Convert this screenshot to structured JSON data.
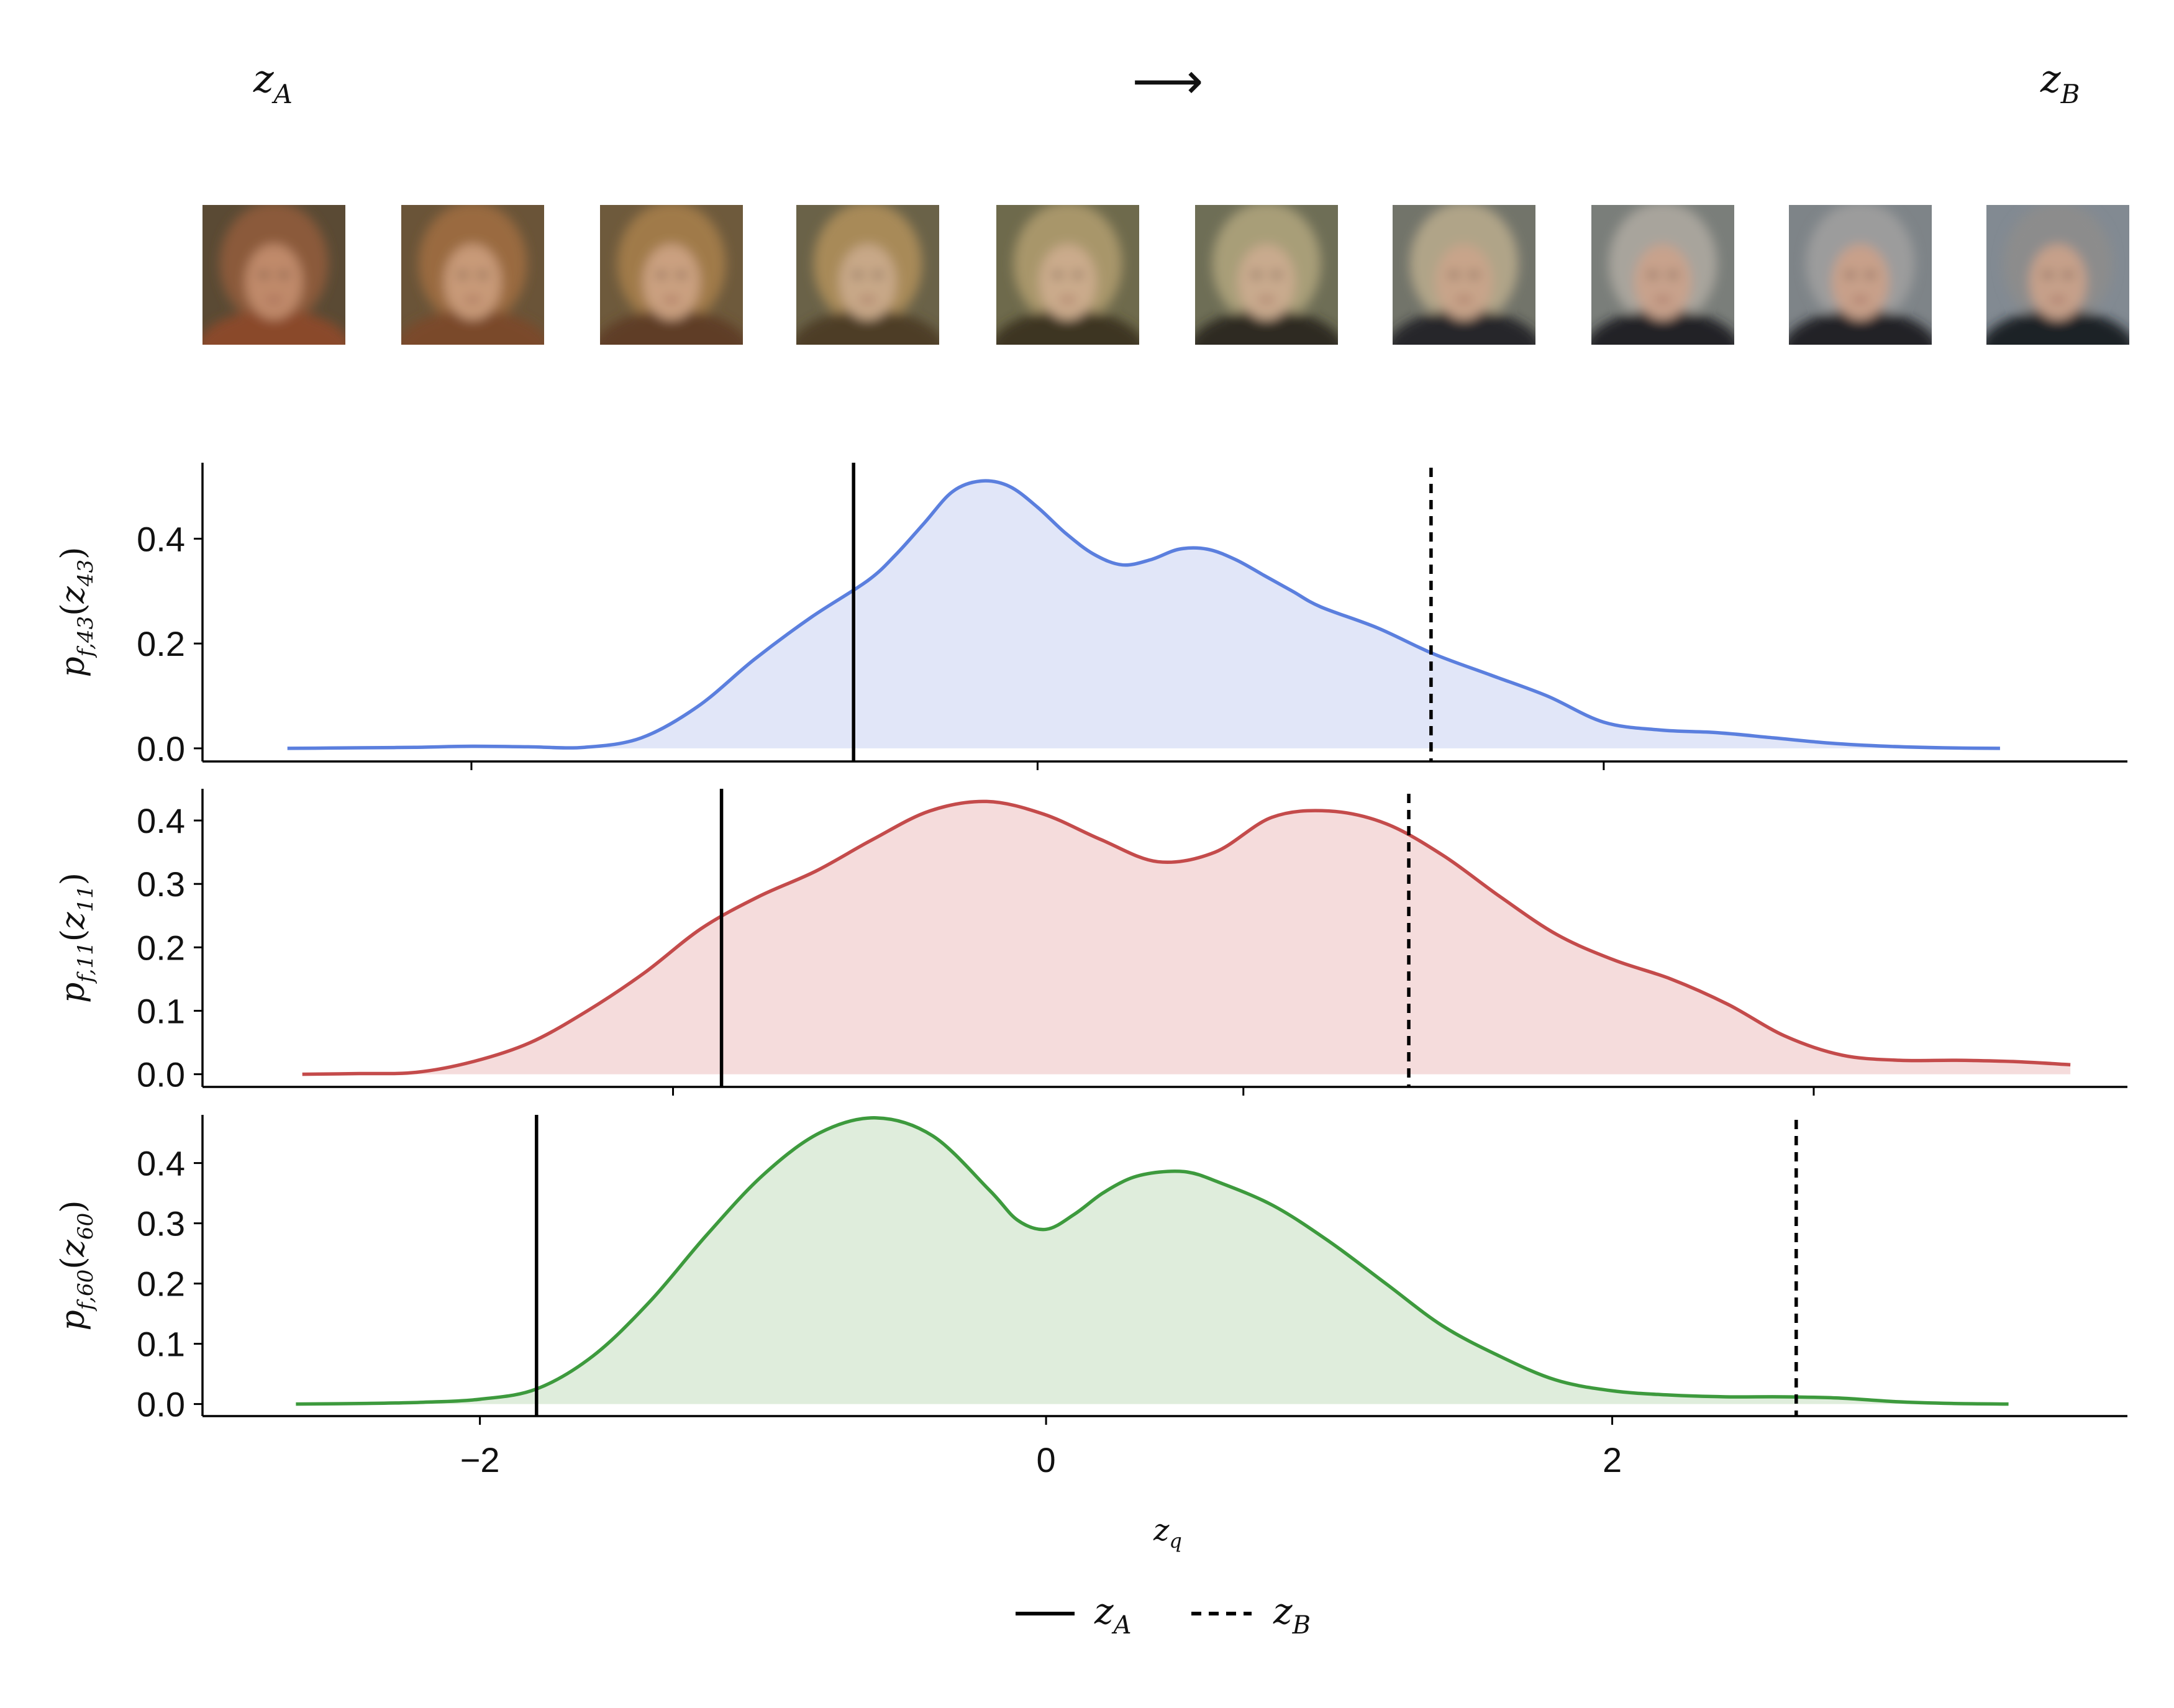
{
  "header": {
    "start_label": "z",
    "start_sub": "A",
    "arrow": "⟶",
    "end_label": "z",
    "end_sub": "B"
  },
  "thumbnails": {
    "count": 10,
    "colors": [
      {
        "bg": "#5a4a34",
        "hair": "#8b5a3a",
        "face": "#c08a6a",
        "shirt": "#8a4a2c"
      },
      {
        "bg": "#6a5438",
        "hair": "#9a6a40",
        "face": "#c89a78",
        "shirt": "#7a4a2c"
      },
      {
        "bg": "#6e5a3c",
        "hair": "#a07a48",
        "face": "#caa080",
        "shirt": "#5e3e26"
      },
      {
        "bg": "#6a6248",
        "hair": "#a88a58",
        "face": "#c8a888",
        "shirt": "#4e3c28"
      },
      {
        "bg": "#6e6a4c",
        "hair": "#a8966a",
        "face": "#cbab8c",
        "shirt": "#3c3424"
      },
      {
        "bg": "#6e6e56",
        "hair": "#a89e78",
        "face": "#c9aa8e",
        "shirt": "#2e2a22"
      },
      {
        "bg": "#72746a",
        "hair": "#b0a488",
        "face": "#c8a48a",
        "shirt": "#26262a"
      },
      {
        "bg": "#7a7e7a",
        "hair": "#a8a49c",
        "face": "#c8a28c",
        "shirt": "#222226"
      },
      {
        "bg": "#7e8488",
        "hair": "#9c9c9c",
        "face": "#c8a08a",
        "shirt": "#202228"
      },
      {
        "bg": "#828a92",
        "hair": "#8c8c8c",
        "face": "#c6a08a",
        "shirt": "#1e2026"
      }
    ]
  },
  "legend": {
    "za_label": "z",
    "za_sub": "A",
    "zb_label": "z",
    "zb_sub": "B"
  },
  "chart_data": [
    {
      "type": "area",
      "ylabel": "p_{f,43}(z_{43})",
      "ylabel_parts": {
        "p": "p",
        "psub": "f,43",
        "z": "z",
        "zsub": "43"
      },
      "color": "#5b7fde",
      "fill": "#e1e6f8",
      "xlim": [
        -2.95,
        3.85
      ],
      "ylim": [
        -0.025,
        0.545
      ],
      "yticks": [
        0.0,
        0.2,
        0.4
      ],
      "ytick_labels": [
        "0.0",
        "0.2",
        "0.4"
      ],
      "z_A": -0.65,
      "z_B": 1.39,
      "x": [
        -2.65,
        -2.4,
        -2.2,
        -2.0,
        -1.8,
        -1.6,
        -1.4,
        -1.2,
        -1.0,
        -0.8,
        -0.6,
        -0.5,
        -0.4,
        -0.3,
        -0.2,
        -0.1,
        0.0,
        0.1,
        0.2,
        0.3,
        0.4,
        0.5,
        0.6,
        0.7,
        0.8,
        0.9,
        1.0,
        1.2,
        1.4,
        1.6,
        1.8,
        2.0,
        2.2,
        2.4,
        2.6,
        2.8,
        3.0,
        3.2,
        3.4
      ],
      "y": [
        0.0,
        0.001,
        0.002,
        0.004,
        0.003,
        0.002,
        0.02,
        0.08,
        0.17,
        0.25,
        0.32,
        0.37,
        0.43,
        0.49,
        0.51,
        0.5,
        0.46,
        0.41,
        0.37,
        0.35,
        0.36,
        0.38,
        0.38,
        0.36,
        0.33,
        0.3,
        0.27,
        0.23,
        0.18,
        0.14,
        0.1,
        0.05,
        0.035,
        0.03,
        0.02,
        0.01,
        0.004,
        0.001,
        0.0
      ]
    },
    {
      "type": "area",
      "ylabel": "p_{f,11}(z_{11})",
      "ylabel_parts": {
        "p": "p",
        "psub": "f,11",
        "z": "z",
        "zsub": "11"
      },
      "color": "#c44b4b",
      "fill": "#f5dcdc",
      "xlim": [
        -3.65,
        3.1
      ],
      "ylim": [
        -0.02,
        0.45
      ],
      "yticks": [
        0.0,
        0.1,
        0.2,
        0.3,
        0.4
      ],
      "ytick_labels": [
        "0.0",
        "0.1",
        "0.2",
        "0.3",
        "0.4"
      ],
      "z_A": -1.83,
      "z_B": 0.58,
      "x": [
        -3.3,
        -3.1,
        -2.9,
        -2.7,
        -2.5,
        -2.3,
        -2.1,
        -1.9,
        -1.7,
        -1.5,
        -1.3,
        -1.1,
        -0.9,
        -0.7,
        -0.5,
        -0.3,
        -0.1,
        0.1,
        0.3,
        0.5,
        0.7,
        0.9,
        1.1,
        1.3,
        1.5,
        1.7,
        1.9,
        2.1,
        2.3,
        2.5,
        2.7,
        2.9
      ],
      "y": [
        0.0,
        0.001,
        0.003,
        0.02,
        0.05,
        0.1,
        0.16,
        0.23,
        0.28,
        0.32,
        0.37,
        0.415,
        0.43,
        0.41,
        0.37,
        0.335,
        0.35,
        0.405,
        0.415,
        0.395,
        0.345,
        0.28,
        0.22,
        0.18,
        0.15,
        0.11,
        0.06,
        0.03,
        0.022,
        0.022,
        0.02,
        0.015
      ]
    },
    {
      "type": "area",
      "ylabel": "p_{f,60}(z_{60})",
      "ylabel_parts": {
        "p": "p",
        "psub": "f,60",
        "z": "z",
        "zsub": "60"
      },
      "color": "#3d9a3d",
      "fill": "#dfeddc",
      "xlim": [
        -2.98,
        3.82
      ],
      "ylim": [
        -0.02,
        0.48
      ],
      "yticks": [
        0.0,
        0.1,
        0.2,
        0.3,
        0.4
      ],
      "ytick_labels": [
        "0.0",
        "0.1",
        "0.2",
        "0.3",
        "0.4"
      ],
      "xticks": [
        -2,
        0,
        2
      ],
      "xtick_labels": [
        "−2",
        "0",
        "2"
      ],
      "xlabel": "z_q",
      "xlabel_parts": {
        "z": "z",
        "sub": "q"
      },
      "z_A": -1.8,
      "z_B": 2.65,
      "x": [
        -2.65,
        -2.4,
        -2.2,
        -2.0,
        -1.8,
        -1.6,
        -1.4,
        -1.2,
        -1.0,
        -0.8,
        -0.6,
        -0.4,
        -0.2,
        -0.1,
        0.0,
        0.1,
        0.2,
        0.3,
        0.4,
        0.5,
        0.6,
        0.8,
        1.0,
        1.2,
        1.4,
        1.6,
        1.8,
        2.0,
        2.2,
        2.4,
        2.6,
        2.8,
        3.0,
        3.2,
        3.4
      ],
      "y": [
        0.0,
        0.001,
        0.003,
        0.008,
        0.025,
        0.08,
        0.17,
        0.28,
        0.38,
        0.45,
        0.475,
        0.445,
        0.355,
        0.305,
        0.29,
        0.315,
        0.35,
        0.375,
        0.385,
        0.385,
        0.37,
        0.33,
        0.27,
        0.2,
        0.13,
        0.08,
        0.04,
        0.022,
        0.015,
        0.012,
        0.012,
        0.01,
        0.004,
        0.001,
        0.0
      ]
    }
  ]
}
